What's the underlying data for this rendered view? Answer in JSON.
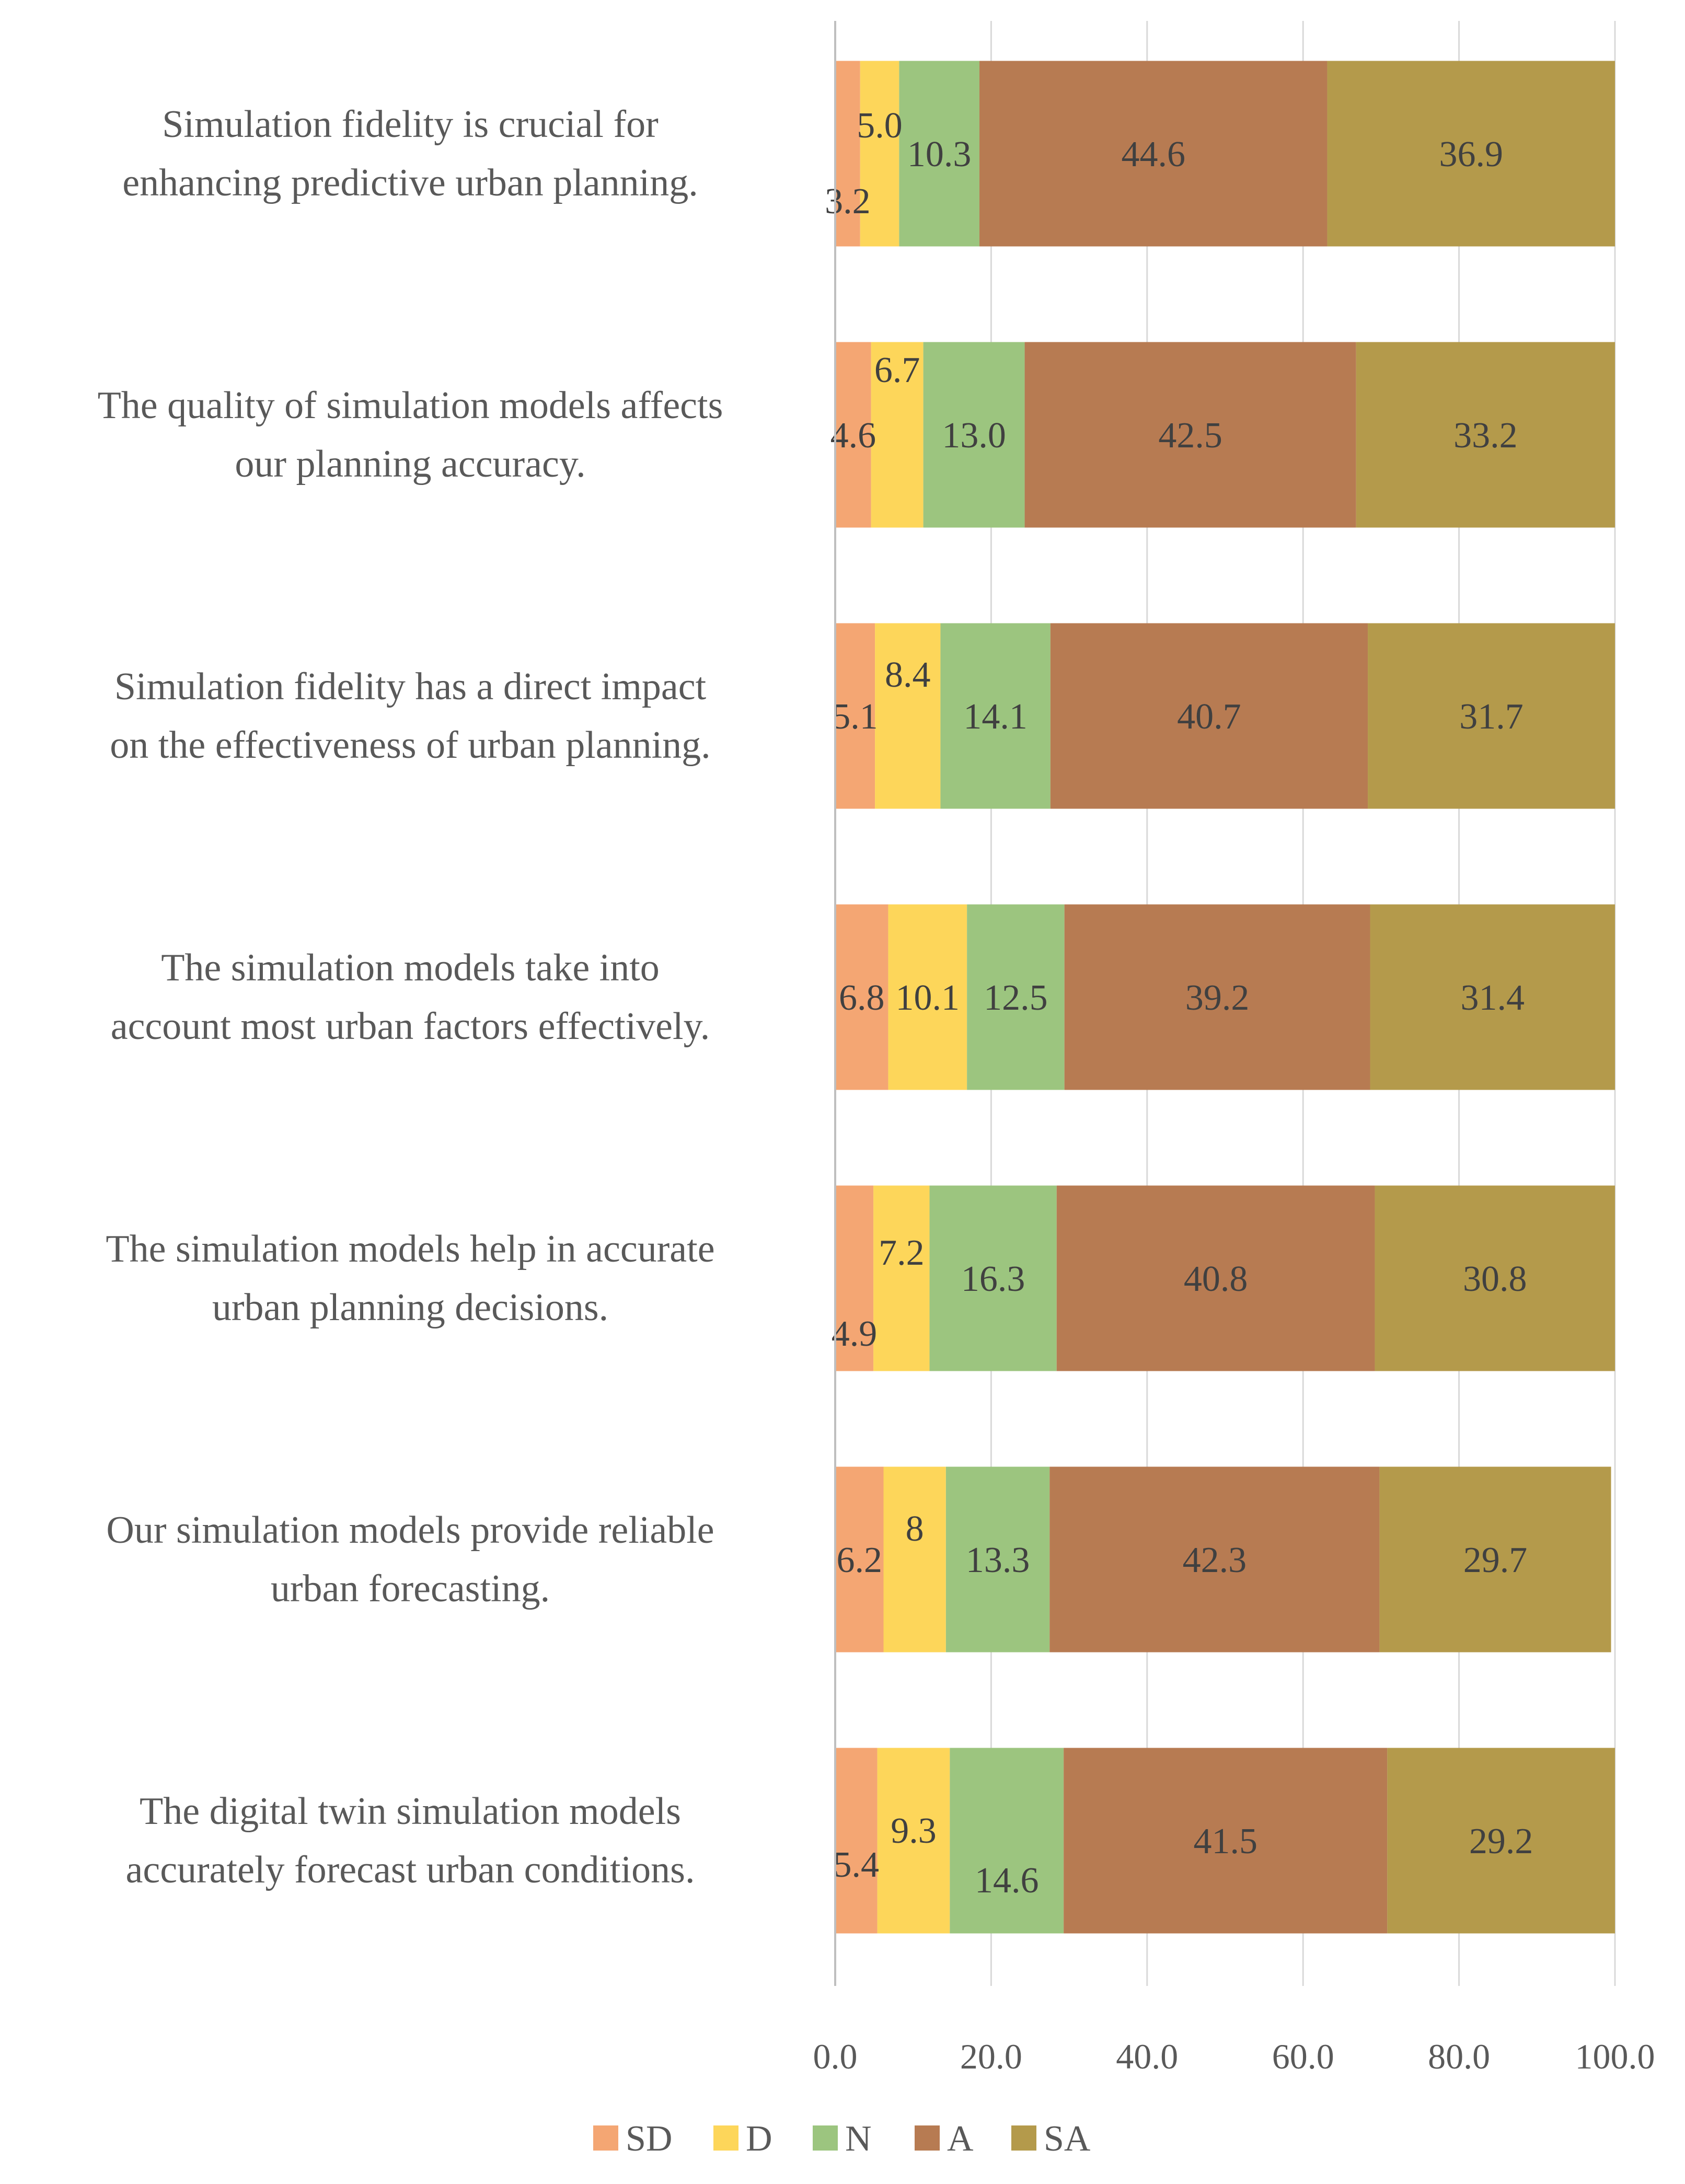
{
  "chart_data": {
    "type": "bar",
    "orientation": "horizontal",
    "stacked": true,
    "title": "",
    "xlabel": "",
    "ylabel": "",
    "xlim": [
      0,
      100
    ],
    "x_ticks": [
      "0.0",
      "20.0",
      "40.0",
      "60.0",
      "80.0",
      "100.0"
    ],
    "x_tick_values": [
      0,
      20,
      40,
      60,
      80,
      100
    ],
    "grid": true,
    "legend_position": "bottom",
    "categories": [
      "Simulation fidelity is crucial for enhancing predictive urban planning.",
      "The quality of simulation models affects our planning accuracy.",
      "Simulation fidelity has a direct impact on the effectiveness of urban planning.",
      "The simulation models take into account most urban factors effectively.",
      "The simulation models help in accurate urban planning decisions.",
      "Our simulation models provide reliable urban forecasting.",
      "The digital twin simulation models accurately forecast urban conditions."
    ],
    "category_lines": [
      [
        "Simulation fidelity is crucial for",
        "enhancing predictive urban planning."
      ],
      [
        "The quality of simulation models affects",
        "our planning accuracy."
      ],
      [
        "Simulation fidelity has a direct impact",
        "on the effectiveness of urban planning."
      ],
      [
        "The simulation models take into",
        "account most urban factors effectively."
      ],
      [
        "The simulation models help in accurate",
        "urban planning decisions."
      ],
      [
        "Our simulation models provide reliable",
        "urban forecasting."
      ],
      [
        "The digital twin simulation models",
        "accurately forecast urban conditions."
      ]
    ],
    "series": [
      {
        "name": "SD",
        "color": "#F4A673",
        "values": [
          3.2,
          4.6,
          5.1,
          6.8,
          4.9,
          6.2,
          5.4
        ],
        "labels": [
          "3.2",
          "4.6",
          "5.1",
          "6.8",
          "4.9",
          "6.2",
          "5.4"
        ]
      },
      {
        "name": "D",
        "color": "#FDD65A",
        "values": [
          5.0,
          6.7,
          8.4,
          10.1,
          7.2,
          8,
          9.3
        ],
        "labels": [
          "5.0",
          "6.7",
          "8.4",
          "10.1",
          "7.2",
          "8",
          "9.3"
        ]
      },
      {
        "name": "N",
        "color": "#9CC57F",
        "values": [
          10.3,
          13.0,
          14.1,
          12.5,
          16.3,
          13.3,
          14.6
        ],
        "labels": [
          "10.3",
          "13.0",
          "14.1",
          "12.5",
          "16.3",
          "13.3",
          "14.6"
        ]
      },
      {
        "name": "A",
        "color": "#B77B52",
        "values": [
          44.6,
          42.5,
          40.7,
          39.2,
          40.8,
          42.3,
          41.5
        ],
        "labels": [
          "44.6",
          "42.5",
          "40.7",
          "39.2",
          "40.8",
          "42.3",
          "41.5"
        ]
      },
      {
        "name": "SA",
        "color": "#B49A4B",
        "values": [
          36.9,
          33.2,
          31.7,
          31.4,
          30.8,
          29.7,
          29.2
        ],
        "labels": [
          "36.9",
          "33.2",
          "31.7",
          "31.4",
          "30.8",
          "29.7",
          "29.2"
        ]
      }
    ]
  }
}
